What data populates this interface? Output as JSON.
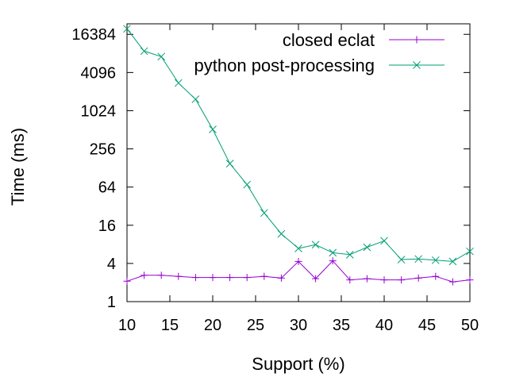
{
  "chart_data": {
    "type": "line",
    "title": "",
    "xlabel": "Support (%)",
    "ylabel": "Time (ms)",
    "xlim": [
      10,
      50
    ],
    "ylim": [
      1,
      24000
    ],
    "yscale": "log2",
    "legend_position": "top-right",
    "grid": false,
    "x_ticks": [
      10,
      15,
      20,
      25,
      30,
      35,
      40,
      45,
      50
    ],
    "y_ticks": [
      1,
      4,
      16,
      64,
      256,
      1024,
      4096,
      16384
    ],
    "x": [
      10,
      12,
      14,
      16,
      18,
      20,
      22,
      24,
      26,
      28,
      30,
      32,
      34,
      36,
      38,
      40,
      42,
      44,
      46,
      48,
      50
    ],
    "series": [
      {
        "name": "closed eclat",
        "color": "#9400d3",
        "marker": "plus",
        "values": [
          2.1,
          2.6,
          2.6,
          2.5,
          2.4,
          2.4,
          2.4,
          2.4,
          2.5,
          2.35,
          4.3,
          2.3,
          4.4,
          2.2,
          2.3,
          2.2,
          2.2,
          2.35,
          2.5,
          2.05,
          2.2
        ]
      },
      {
        "name": "python post-processing",
        "color": "#009e73",
        "marker": "cross",
        "values": [
          20000,
          8900,
          7300,
          2800,
          1550,
          520,
          150,
          70,
          25,
          11.7,
          6.9,
          7.9,
          5.9,
          5.5,
          7.2,
          9.1,
          4.6,
          4.7,
          4.5,
          4.3,
          6.2
        ]
      }
    ]
  }
}
